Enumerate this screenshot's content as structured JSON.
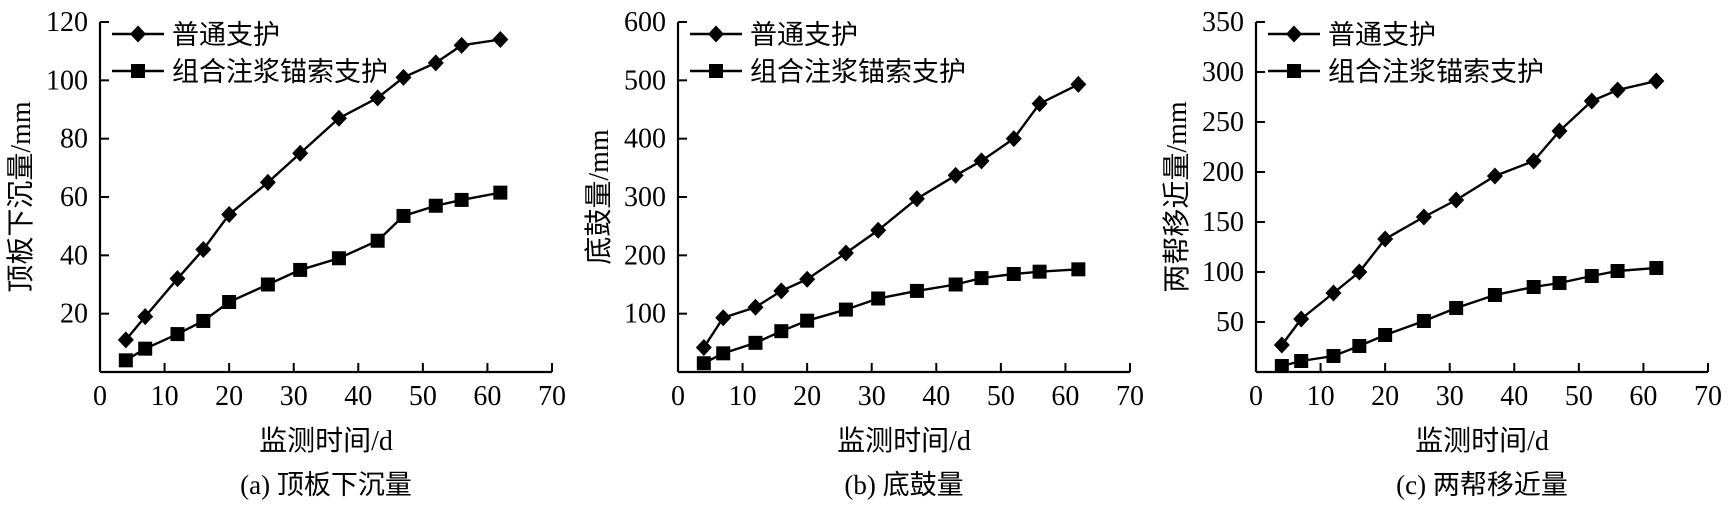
{
  "figure": {
    "background": "#ffffff",
    "stroke_color": "#000000",
    "text_color": "#000000",
    "legend_position": "top-left",
    "grid": false
  },
  "legend": {
    "items": [
      {
        "label": "普通支护",
        "marker": "diamond",
        "color": "#000000"
      },
      {
        "label": "组合注浆锚索支护",
        "marker": "square",
        "color": "#000000"
      }
    ]
  },
  "chart_data": [
    {
      "type": "line",
      "panel": "a",
      "caption": "(a) 顶板下沉量",
      "title": "",
      "xlabel": "监测时间/d",
      "ylabel": "顶板下沉量/mm",
      "xlim": [
        0,
        70
      ],
      "ylim": [
        0,
        120
      ],
      "xticks": [
        0,
        10,
        20,
        30,
        40,
        50,
        60,
        70
      ],
      "yticks": [
        20,
        40,
        60,
        80,
        100,
        120
      ],
      "x": [
        4,
        7,
        12,
        16,
        20,
        26,
        31,
        37,
        43,
        47,
        52,
        56,
        62
      ],
      "series": [
        {
          "name": "普通支护",
          "marker": "diamond",
          "values": [
            11,
            19,
            32,
            42,
            54,
            65,
            75,
            87,
            94,
            101,
            106,
            112,
            114
          ]
        },
        {
          "name": "组合注浆锚索支护",
          "marker": "square",
          "values": [
            4,
            8,
            13,
            17.5,
            24,
            30,
            35,
            39,
            45,
            53.5,
            57,
            59,
            61.5
          ]
        }
      ]
    },
    {
      "type": "line",
      "panel": "b",
      "caption": "(b) 底鼓量",
      "title": "",
      "xlabel": "监测时间/d",
      "ylabel": "底鼓量/mm",
      "xlim": [
        0,
        70
      ],
      "ylim": [
        0,
        600
      ],
      "xticks": [
        0,
        10,
        20,
        30,
        40,
        50,
        60,
        70
      ],
      "yticks": [
        100,
        200,
        300,
        400,
        500,
        600
      ],
      "x": [
        4,
        7,
        12,
        16,
        20,
        26,
        31,
        37,
        43,
        47,
        52,
        56,
        62
      ],
      "series": [
        {
          "name": "普通支护",
          "marker": "diamond",
          "values": [
            42,
            93,
            111,
            139,
            159,
            204,
            243,
            297,
            337,
            362,
            400,
            460,
            493
          ]
        },
        {
          "name": "组合注浆锚索支护",
          "marker": "square",
          "values": [
            15,
            32,
            50,
            70,
            88,
            107,
            126,
            139,
            150,
            161,
            168,
            172,
            176
          ]
        }
      ]
    },
    {
      "type": "line",
      "panel": "c",
      "caption": "(c) 两帮移近量",
      "title": "",
      "xlabel": "监测时间/d",
      "ylabel": "两帮移近量/mm",
      "xlim": [
        0,
        70
      ],
      "ylim": [
        0,
        350
      ],
      "xticks": [
        0,
        10,
        20,
        30,
        40,
        50,
        60,
        70
      ],
      "yticks": [
        50,
        100,
        150,
        200,
        250,
        300,
        350
      ],
      "x": [
        4,
        7,
        12,
        16,
        20,
        26,
        31,
        37,
        43,
        47,
        52,
        56,
        62
      ],
      "series": [
        {
          "name": "普通支护",
          "marker": "diamond",
          "values": [
            27,
            53,
            79,
            100,
            133,
            155,
            172,
            196,
            211,
            241,
            271,
            282,
            291
          ]
        },
        {
          "name": "组合注浆锚索支护",
          "marker": "square",
          "values": [
            6,
            11,
            16,
            26,
            37,
            51,
            64,
            77,
            85,
            89,
            96,
            101,
            104
          ]
        }
      ]
    }
  ]
}
